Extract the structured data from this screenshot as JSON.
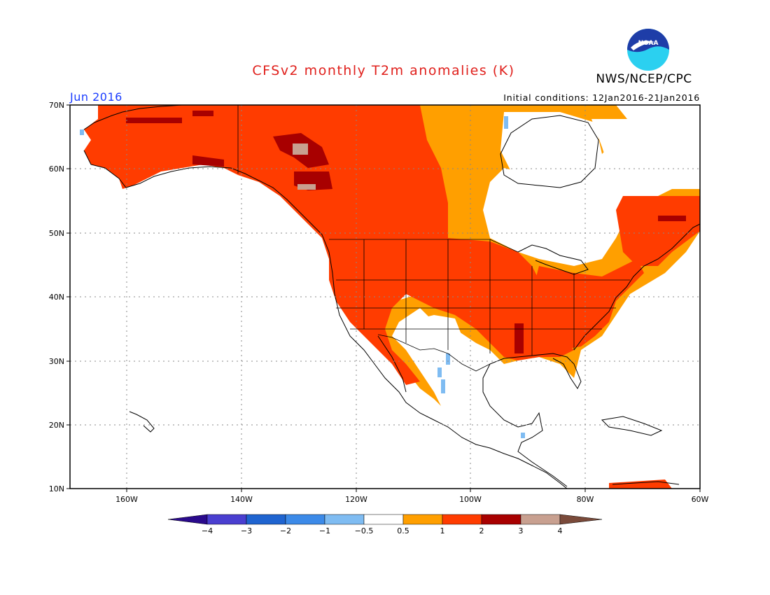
{
  "title": "CFSv2 monthly T2m anomalies (K)",
  "month_label": "Jun 2016",
  "initial_conditions": "Initial conditions: 12Jan2016-21Jan2016",
  "agency": "NWS/NCEP/CPC",
  "logo_text": "NOAA",
  "map": {
    "lon_range": [
      -170,
      -60
    ],
    "lat_range": [
      10,
      70
    ],
    "lat_ticks": [
      "70N",
      "60N",
      "50N",
      "40N",
      "30N",
      "20N",
      "10N"
    ],
    "lon_ticks": [
      "160W",
      "140W",
      "120W",
      "100W",
      "80W",
      "60W"
    ],
    "grid": "dotted"
  },
  "legend": {
    "colors": [
      "#2a0a8c",
      "#4a3fd0",
      "#1f64d0",
      "#3c8ae8",
      "#7fbcf2",
      "#ffffff",
      "#ff9f00",
      "#ff3c00",
      "#a80000",
      "#c8a090",
      "#7a4a3a"
    ],
    "labels": [
      "−4",
      "−3",
      "−2",
      "−1",
      "−0.5",
      "0.5",
      "1",
      "2",
      "3",
      "4"
    ]
  },
  "regions": [
    {
      "name": "Alaska and western Canada",
      "anomaly": "1 to 2"
    },
    {
      "name": "Southwest US interior",
      "anomaly": "-0.5 to 0.5"
    },
    {
      "name": "Hudson Bay",
      "anomaly": "-0.5 to 0.5"
    },
    {
      "name": "Eastern US",
      "anomaly": "1 to 2"
    },
    {
      "name": "Central Canada",
      "anomaly": "0.5 to 1"
    }
  ]
}
